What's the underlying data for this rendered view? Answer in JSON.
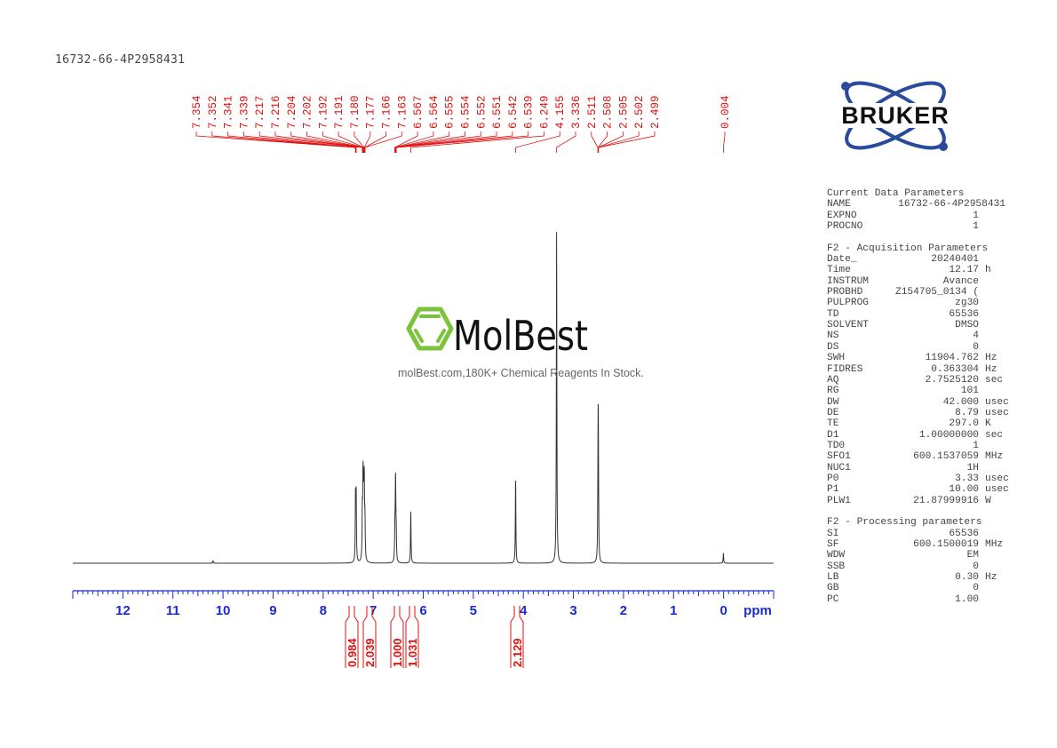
{
  "sample_title": "16732-66-4P2958431",
  "logo": {
    "text": "BRUKER",
    "color": "#2a4a9c"
  },
  "watermark": {
    "brand": "MolBest",
    "tagline": "molBest.com,180K+ Chemical Reagents In Stock.",
    "color": "#7cc23a"
  },
  "colors": {
    "spectrum": "#333333",
    "peak_labels": "#e01010",
    "axis": "#1a2ad0",
    "integrals": "#e01010"
  },
  "chart_data": {
    "type": "line",
    "title": "",
    "xlabel": "ppm",
    "ylabel": "",
    "xlim": [
      13.0,
      -1.0
    ],
    "x_reversed": true,
    "x_ticks": [
      12,
      11,
      10,
      9,
      8,
      7,
      6,
      5,
      4,
      3,
      2,
      1,
      0
    ],
    "x_minor_step": 0.1,
    "grid": false,
    "peaks": [
      {
        "ppm": 10.2,
        "intensity": 0.008
      },
      {
        "ppm": 7.354,
        "intensity": 0.1
      },
      {
        "ppm": 7.352,
        "intensity": 0.1
      },
      {
        "ppm": 7.341,
        "intensity": 0.1
      },
      {
        "ppm": 7.339,
        "intensity": 0.1
      },
      {
        "ppm": 7.217,
        "intensity": 0.07
      },
      {
        "ppm": 7.216,
        "intensity": 0.07
      },
      {
        "ppm": 7.204,
        "intensity": 0.12
      },
      {
        "ppm": 7.202,
        "intensity": 0.12
      },
      {
        "ppm": 7.192,
        "intensity": 0.09
      },
      {
        "ppm": 7.191,
        "intensity": 0.09
      },
      {
        "ppm": 7.18,
        "intensity": 0.12
      },
      {
        "ppm": 7.177,
        "intensity": 0.12
      },
      {
        "ppm": 7.166,
        "intensity": 0.06
      },
      {
        "ppm": 7.163,
        "intensity": 0.06
      },
      {
        "ppm": 6.567,
        "intensity": 0.05
      },
      {
        "ppm": 6.564,
        "intensity": 0.05
      },
      {
        "ppm": 6.555,
        "intensity": 0.07
      },
      {
        "ppm": 6.554,
        "intensity": 0.07
      },
      {
        "ppm": 6.552,
        "intensity": 0.06
      },
      {
        "ppm": 6.551,
        "intensity": 0.06
      },
      {
        "ppm": 6.542,
        "intensity": 0.04
      },
      {
        "ppm": 6.539,
        "intensity": 0.04
      },
      {
        "ppm": 6.249,
        "intensity": 0.16
      },
      {
        "ppm": 4.155,
        "intensity": 0.26
      },
      {
        "ppm": 3.336,
        "intensity": 1.0
      },
      {
        "ppm": 2.511,
        "intensity": 0.06
      },
      {
        "ppm": 2.508,
        "intensity": 0.14
      },
      {
        "ppm": 2.505,
        "intensity": 0.2
      },
      {
        "ppm": 2.502,
        "intensity": 0.14
      },
      {
        "ppm": 2.499,
        "intensity": 0.06
      },
      {
        "ppm": 0.004,
        "intensity": 0.03
      }
    ],
    "peak_labels": [
      "7.354",
      "7.352",
      "7.341",
      "7.339",
      "7.217",
      "7.216",
      "7.204",
      "7.202",
      "7.192",
      "7.191",
      "7.180",
      "7.177",
      "7.166",
      "7.163",
      "6.567",
      "6.564",
      "6.555",
      "6.554",
      "6.552",
      "6.551",
      "6.542",
      "6.539",
      "6.249",
      "4.155",
      "3.336",
      "2.511",
      "2.508",
      "2.505",
      "2.502",
      "2.499",
      "0.004"
    ],
    "integrals": [
      {
        "ppm": 7.35,
        "value": "0.984"
      },
      {
        "ppm": 7.19,
        "value": "2.039"
      },
      {
        "ppm": 6.55,
        "value": "1.000"
      },
      {
        "ppm": 6.25,
        "value": "1.031"
      },
      {
        "ppm": 4.155,
        "value": "2.129"
      }
    ]
  },
  "params": {
    "sections": [
      {
        "title": "Current Data Parameters",
        "rows": [
          {
            "key": "NAME",
            "value": "16732-66-4P2958431",
            "unit": "",
            "wide": true
          },
          {
            "key": "EXPNO",
            "value": "1",
            "unit": ""
          },
          {
            "key": "PROCNO",
            "value": "1",
            "unit": ""
          }
        ]
      },
      {
        "title": "F2 - Acquisition Parameters",
        "rows": [
          {
            "key": "Date_",
            "value": "20240401",
            "unit": ""
          },
          {
            "key": "Time",
            "value": "12.17",
            "unit": "h"
          },
          {
            "key": "INSTRUM",
            "value": "Avance",
            "unit": ""
          },
          {
            "key": "PROBHD",
            "value": "Z154705_0134 (",
            "unit": ""
          },
          {
            "key": "PULPROG",
            "value": "zg30",
            "unit": ""
          },
          {
            "key": "TD",
            "value": "65536",
            "unit": ""
          },
          {
            "key": "SOLVENT",
            "value": "DMSO",
            "unit": ""
          },
          {
            "key": "NS",
            "value": "4",
            "unit": ""
          },
          {
            "key": "DS",
            "value": "0",
            "unit": ""
          },
          {
            "key": "SWH",
            "value": "11904.762",
            "unit": "Hz"
          },
          {
            "key": "FIDRES",
            "value": "0.363304",
            "unit": "Hz"
          },
          {
            "key": "AQ",
            "value": "2.7525120",
            "unit": "sec"
          },
          {
            "key": "RG",
            "value": "101",
            "unit": ""
          },
          {
            "key": "DW",
            "value": "42.000",
            "unit": "usec"
          },
          {
            "key": "DE",
            "value": "8.79",
            "unit": "usec"
          },
          {
            "key": "TE",
            "value": "297.0",
            "unit": "K"
          },
          {
            "key": "D1",
            "value": "1.00000000",
            "unit": "sec"
          },
          {
            "key": "TD0",
            "value": "1",
            "unit": ""
          },
          {
            "key": "SFO1",
            "value": "600.1537059",
            "unit": "MHz"
          },
          {
            "key": "NUC1",
            "value": "1H",
            "unit": ""
          },
          {
            "key": "P0",
            "value": "3.33",
            "unit": "usec"
          },
          {
            "key": "P1",
            "value": "10.00",
            "unit": "usec"
          },
          {
            "key": "PLW1",
            "value": "21.87999916",
            "unit": "W"
          }
        ]
      },
      {
        "title": "F2 - Processing parameters",
        "rows": [
          {
            "key": "SI",
            "value": "65536",
            "unit": ""
          },
          {
            "key": "SF",
            "value": "600.1500019",
            "unit": "MHz"
          },
          {
            "key": "WDW",
            "value": "EM",
            "unit": ""
          },
          {
            "key": "SSB",
            "value": "0",
            "unit": ""
          },
          {
            "key": "LB",
            "value": "0.30",
            "unit": "Hz"
          },
          {
            "key": "GB",
            "value": "0",
            "unit": ""
          },
          {
            "key": "PC",
            "value": "1.00",
            "unit": ""
          }
        ]
      }
    ]
  }
}
